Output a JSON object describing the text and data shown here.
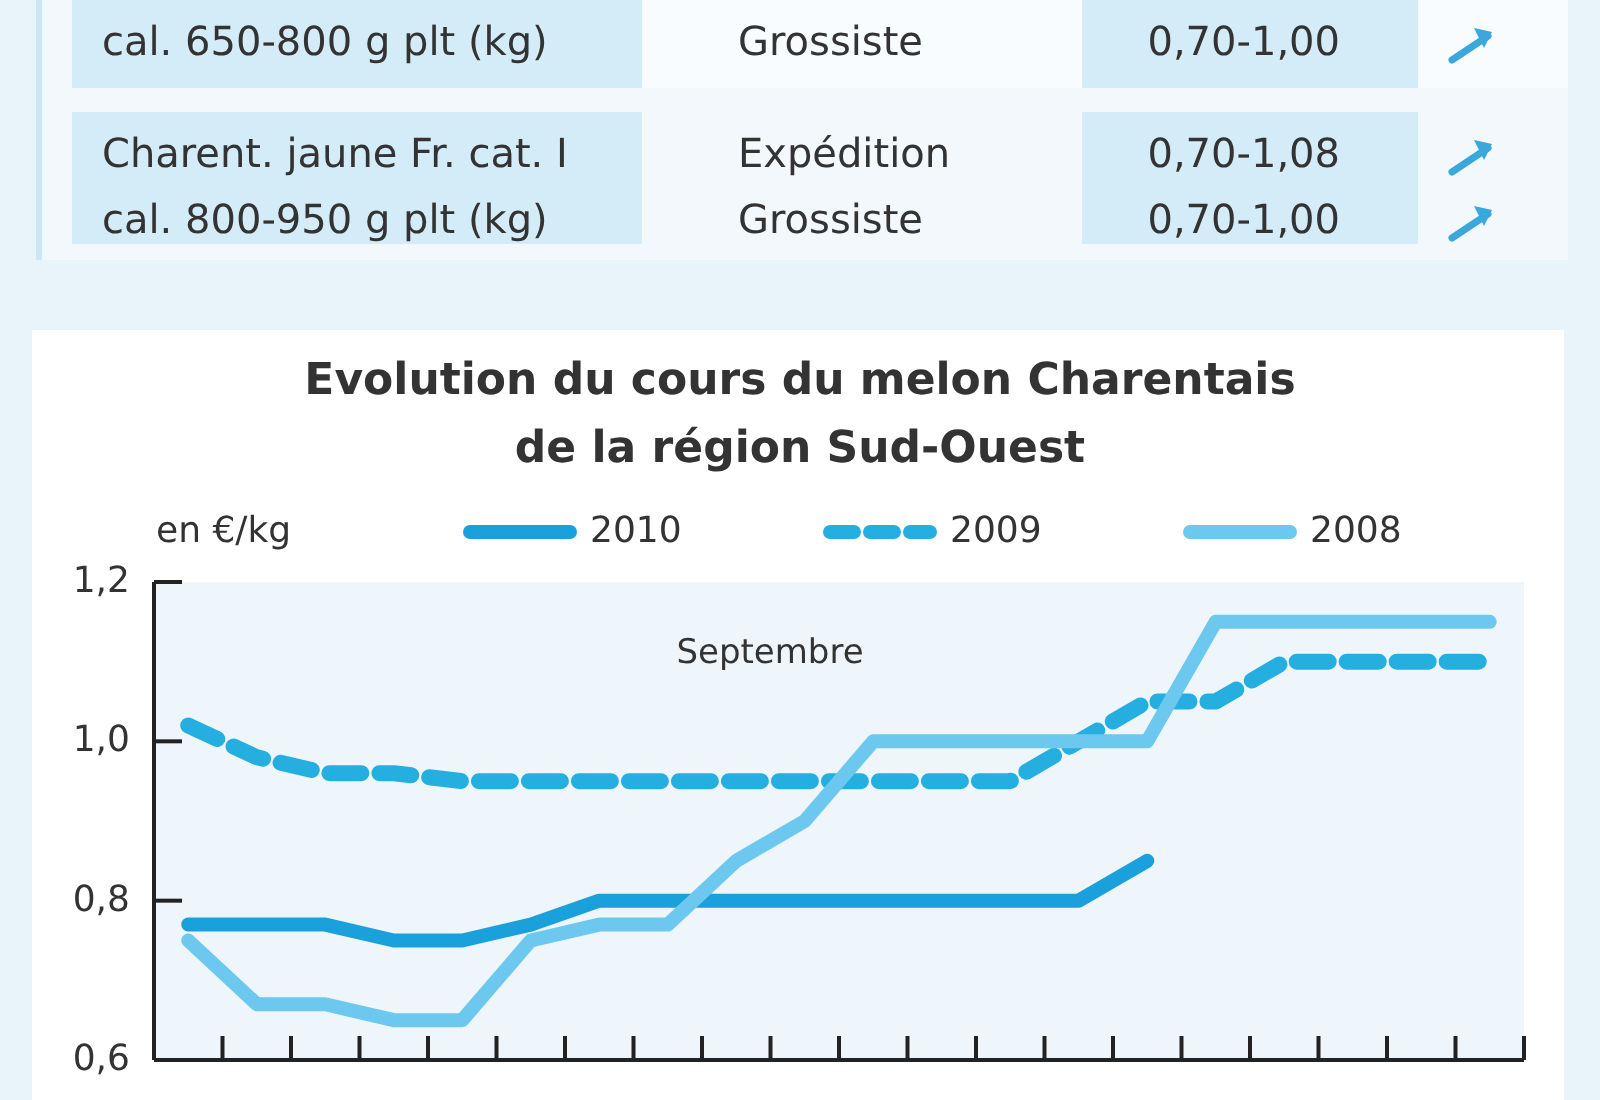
{
  "chart_data": [
    {
      "type": "other",
      "annotations": [
        "cal. 650-800 g plt (kg)",
        "Grossiste",
        "0,70-1,00",
        "Charent. jaune Fr. cat. I",
        "Expédition",
        "0,70-1,08",
        "cal. 800-950 g plt (kg)",
        "Grossiste",
        "0,70-1,00"
      ]
    },
    {
      "type": "line",
      "title": "Evolution du cours du melon Charentais\nde la région Sud-Ouest",
      "ylabel": "en €/kg",
      "annotations": [
        "Septembre"
      ],
      "categories": [
        null,
        null,
        null,
        null,
        null,
        null,
        null,
        null,
        null,
        null,
        null,
        null,
        null,
        null,
        null,
        null,
        null,
        null,
        null,
        null
      ],
      "series": [
        {
          "name": "2010",
          "color": "#1aa0da",
          "line_style": "solid",
          "values": [
            0.77,
            0.77,
            0.77,
            0.75,
            0.75,
            0.77,
            0.8,
            0.8,
            0.8,
            0.8,
            0.8,
            0.8,
            0.8,
            0.8,
            0.85,
            null,
            null,
            null,
            null,
            null
          ]
        },
        {
          "name": "2009",
          "color": "#25afe0",
          "line_style": "dashed",
          "values": [
            1.02,
            0.98,
            0.96,
            0.96,
            0.95,
            0.95,
            0.95,
            0.95,
            0.95,
            0.95,
            0.95,
            0.95,
            0.95,
            1.0,
            1.05,
            1.05,
            1.1,
            1.1,
            1.1,
            1.1
          ]
        },
        {
          "name": "2008",
          "color": "#6cc8ee",
          "line_style": "solid",
          "values": [
            0.75,
            0.67,
            0.67,
            0.65,
            0.65,
            0.75,
            0.77,
            0.77,
            0.85,
            0.9,
            1.0,
            1.0,
            1.0,
            1.0,
            1.0,
            1.15,
            1.15,
            1.15,
            1.15,
            1.15
          ]
        }
      ],
      "ylim": [
        0.6,
        1.2
      ],
      "yticks": [
        {
          "value": 0.6,
          "label": "0,6"
        },
        {
          "value": 0.8,
          "label": "0,8"
        },
        {
          "value": 1.0,
          "label": "1,0"
        },
        {
          "value": 1.2,
          "label": "1,2"
        }
      ],
      "grid": false,
      "legend": "top",
      "tick_labels": "y"
    }
  ]
}
